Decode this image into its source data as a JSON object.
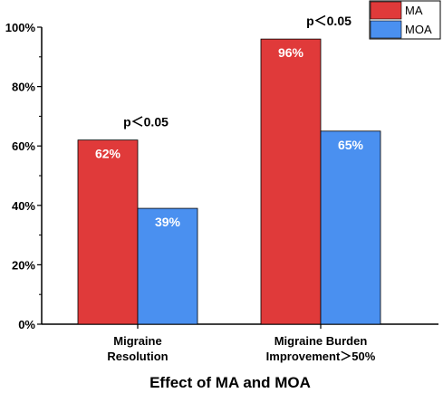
{
  "chart_data": {
    "type": "bar",
    "title": "Effect of MA and MOA",
    "categories": [
      [
        "Migraine",
        "Resolution"
      ],
      [
        "Migraine Burden",
        "Improvement＞50%"
      ]
    ],
    "series": [
      {
        "name": "MA",
        "color": "#e03a3a",
        "values": [
          62,
          96
        ],
        "labels": [
          "62%",
          "96%"
        ]
      },
      {
        "name": "MOA",
        "color": "#4a90f0",
        "values": [
          39,
          65
        ],
        "labels": [
          "39%",
          "65%"
        ]
      }
    ],
    "significance": [
      "p＜0.05",
      "p＜0.05"
    ],
    "ylim": [
      0,
      100
    ],
    "yticks": [
      0,
      20,
      40,
      60,
      80,
      100
    ],
    "ytick_labels": [
      "0%",
      "20%",
      "40%",
      "60%",
      "80%",
      "100%"
    ],
    "legend_position": "top-right",
    "grid": false
  }
}
